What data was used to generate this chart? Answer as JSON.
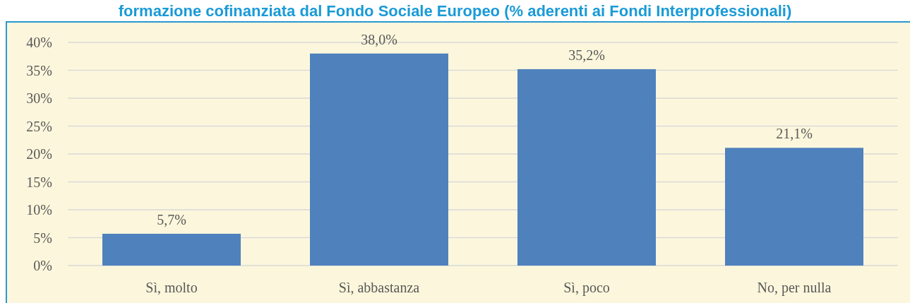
{
  "chart_data": {
    "type": "bar",
    "title": "formazione cofinanziata dal Fondo Sociale Europeo (% aderenti ai Fondi Interprofessionali)",
    "categories": [
      "Sì, molto",
      "Sì, abbastanza",
      "Sì, poco",
      "No, per nulla"
    ],
    "values": [
      5.7,
      38.0,
      35.2,
      21.1
    ],
    "color": "#4f81bd",
    "value_labels": [
      "5,7%",
      "38,0%",
      "35,2%",
      "21,1%"
    ],
    "ylim": [
      0,
      40
    ],
    "yticks": [
      {
        "value": 0,
        "label": "0%"
      },
      {
        "value": 5,
        "label": "5%"
      },
      {
        "value": 10,
        "label": "10%"
      },
      {
        "value": 15,
        "label": "15%"
      },
      {
        "value": 20,
        "label": "20%"
      },
      {
        "value": 25,
        "label": "25%"
      },
      {
        "value": 30,
        "label": "30%"
      },
      {
        "value": 35,
        "label": "35%"
      },
      {
        "value": 40,
        "label": "40%"
      }
    ],
    "grid": "y"
  }
}
